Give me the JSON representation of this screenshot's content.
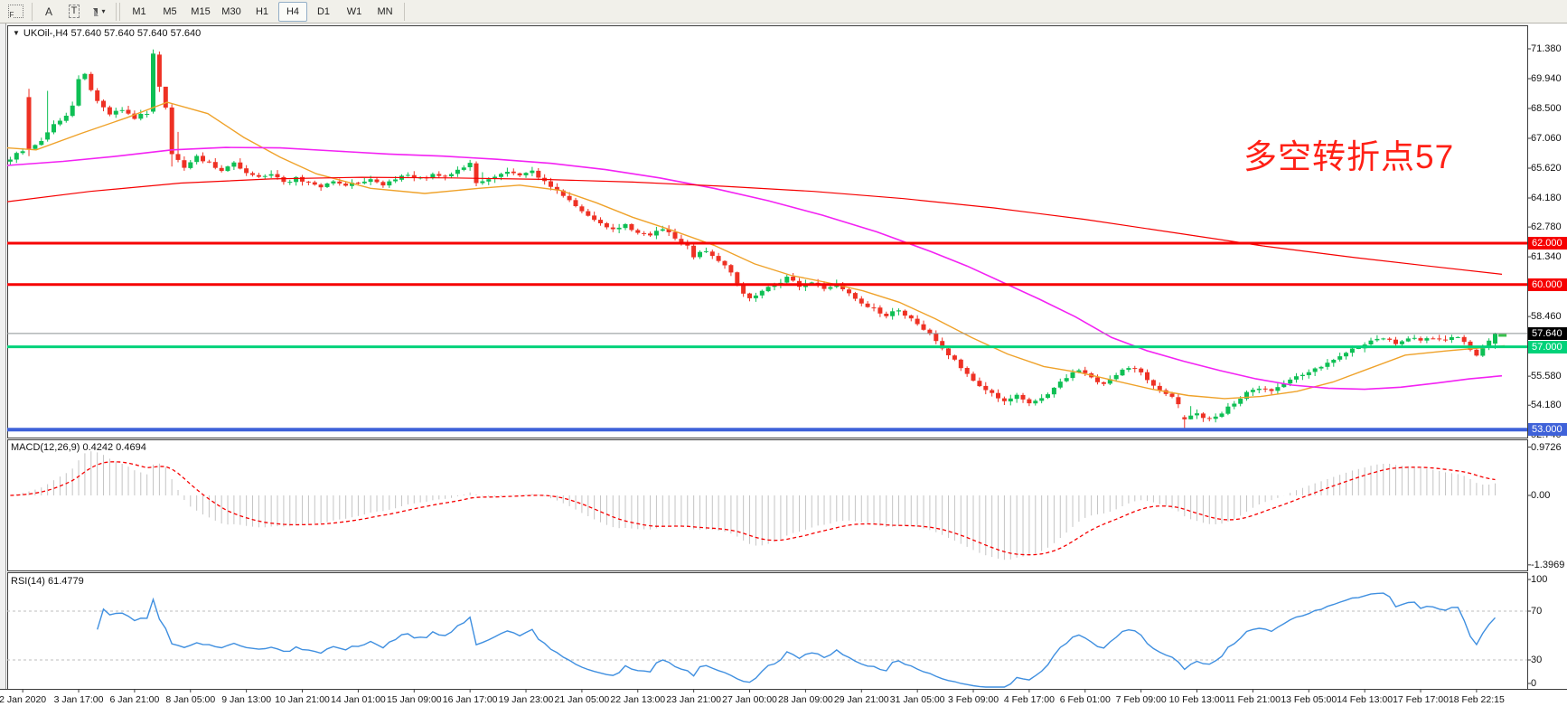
{
  "toolbar": {
    "f_label": "F",
    "a_label": "A",
    "t_label": "T",
    "dropdown_caret": "▾",
    "timeframes": [
      "M1",
      "M5",
      "M15",
      "M30",
      "H1",
      "H4",
      "D1",
      "W1",
      "MN"
    ],
    "active_timeframe": "H4"
  },
  "chart": {
    "caret": "▼",
    "title_text": "UKOil-,H4  57.640 57.640 57.640 57.640",
    "annotation": {
      "text": "多空转折点57",
      "color": "#ff2016"
    }
  },
  "panels": {
    "macd": {
      "label": "MACD(12,26,9) 0.4242 0.4694",
      "axis": [
        "0.9726",
        "0.00",
        "-1.3969"
      ]
    },
    "rsi": {
      "label": "RSI(14) 61.4779",
      "axis": [
        "100",
        "70",
        "30",
        "0"
      ]
    }
  },
  "price_axis": {
    "labels": [
      "71.380",
      "69.940",
      "68.500",
      "67.060",
      "65.620",
      "64.180",
      "62.780",
      "61.340",
      "58.460",
      "55.580",
      "54.180",
      "52.740"
    ],
    "badges": [
      {
        "text": "62.000",
        "price": 62.0,
        "type": "red"
      },
      {
        "text": "60.000",
        "price": 60.0,
        "type": "red"
      },
      {
        "text": "57.640",
        "price": 57.64,
        "type": "black"
      },
      {
        "text": "57.000",
        "price": 57.0,
        "type": "green"
      },
      {
        "text": "53.000",
        "price": 53.0,
        "type": "blue"
      }
    ],
    "badge_colors": {
      "red": "#f60000",
      "black": "#000000",
      "green": "#00d27a",
      "blue": "#3f62d9"
    }
  },
  "time_axis": {
    "labels": [
      "2 Jan 2020",
      "3 Jan 17:00",
      "6 Jan 21:00",
      "8 Jan 05:00",
      "9 Jan 13:00",
      "10 Jan 21:00",
      "14 Jan 01:00",
      "15 Jan 09:00",
      "16 Jan 17:00",
      "19 Jan 23:00",
      "21 Jan 05:00",
      "22 Jan 13:00",
      "23 Jan 21:00",
      "27 Jan 00:00",
      "28 Jan 09:00",
      "29 Jan 21:00",
      "31 Jan 05:00",
      "3 Feb 09:00",
      "4 Feb 17:00",
      "6 Feb 01:00",
      "7 Feb 09:00",
      "10 Feb 13:00",
      "11 Feb 21:00",
      "13 Feb 05:00",
      "14 Feb 13:00",
      "17 Feb 17:00",
      "18 Feb 22:15"
    ]
  },
  "chart_data": {
    "type": "candlestick",
    "symbol": "UKOil-",
    "timeframe": "H4",
    "ohlc_current": {
      "open": 57.64,
      "high": 57.64,
      "low": 57.64,
      "close": 57.64
    },
    "price_range_visible": [
      52.74,
      71.38
    ],
    "levels": [
      {
        "price": 62.0,
        "color": "#f60000",
        "width": 3,
        "name": "resistance-62"
      },
      {
        "price": 60.0,
        "color": "#f60000",
        "width": 3,
        "name": "resistance-60"
      },
      {
        "price": 57.64,
        "color": "#8a9094",
        "width": 1,
        "name": "current-price-line"
      },
      {
        "price": 57.0,
        "color": "#00d27a",
        "width": 3,
        "name": "pivot-57"
      },
      {
        "price": 53.0,
        "color": "#3f62d9",
        "width": 4,
        "name": "support-53"
      }
    ],
    "candles": {
      "count": 240,
      "up_color": "#0ebf54",
      "down_color": "#ee3124",
      "close_anchors": [
        [
          0,
          66.1
        ],
        [
          2,
          66.45
        ],
        [
          4,
          66.7
        ],
        [
          5,
          66.95
        ],
        [
          6,
          67.35
        ],
        [
          7,
          67.7
        ],
        [
          8,
          67.95
        ],
        [
          9,
          68.15
        ],
        [
          10,
          68.6
        ],
        [
          11,
          69.9
        ],
        [
          12,
          70.2
        ],
        [
          13,
          69.4
        ],
        [
          14,
          68.9
        ],
        [
          16,
          68.2
        ],
        [
          18,
          68.5
        ],
        [
          20,
          68.05
        ],
        [
          22,
          68.3
        ],
        [
          25,
          68.6
        ],
        [
          27,
          65.95
        ],
        [
          28,
          65.7
        ],
        [
          30,
          66.2
        ],
        [
          32,
          65.85
        ],
        [
          34,
          65.55
        ],
        [
          36,
          65.9
        ],
        [
          38,
          65.35
        ],
        [
          40,
          65.15
        ],
        [
          42,
          65.4
        ],
        [
          44,
          64.9
        ],
        [
          46,
          65.15
        ],
        [
          48,
          64.9
        ],
        [
          50,
          64.7
        ],
        [
          52,
          65.0
        ],
        [
          54,
          64.8
        ],
        [
          56,
          64.95
        ],
        [
          58,
          65.15
        ],
        [
          60,
          64.85
        ],
        [
          62,
          65.05
        ],
        [
          64,
          65.3
        ],
        [
          66,
          65.1
        ],
        [
          68,
          65.35
        ],
        [
          70,
          65.25
        ],
        [
          72,
          65.55
        ],
        [
          74,
          65.8
        ],
        [
          76,
          65.05
        ],
        [
          78,
          65.2
        ],
        [
          80,
          65.45
        ],
        [
          82,
          65.3
        ],
        [
          84,
          65.45
        ],
        [
          85,
          65.2
        ],
        [
          87,
          64.75
        ],
        [
          89,
          64.3
        ],
        [
          91,
          63.8
        ],
        [
          93,
          63.35
        ],
        [
          95,
          62.9
        ],
        [
          97,
          62.65
        ],
        [
          99,
          62.85
        ],
        [
          101,
          62.55
        ],
        [
          103,
          62.35
        ],
        [
          105,
          62.7
        ],
        [
          107,
          62.2
        ],
        [
          109,
          61.8
        ],
        [
          110,
          61.35
        ],
        [
          112,
          61.65
        ],
        [
          114,
          61.2
        ],
        [
          116,
          60.65
        ],
        [
          117,
          60.1
        ],
        [
          118,
          59.6
        ],
        [
          119,
          59.3
        ],
        [
          121,
          59.7
        ],
        [
          123,
          60.0
        ],
        [
          125,
          60.3
        ],
        [
          127,
          59.95
        ],
        [
          129,
          60.15
        ],
        [
          131,
          59.85
        ],
        [
          133,
          60.0
        ],
        [
          135,
          59.55
        ],
        [
          137,
          59.15
        ],
        [
          139,
          58.8
        ],
        [
          141,
          58.5
        ],
        [
          143,
          58.8
        ],
        [
          145,
          58.35
        ],
        [
          147,
          57.9
        ],
        [
          149,
          57.3
        ],
        [
          151,
          56.65
        ],
        [
          153,
          56.0
        ],
        [
          155,
          55.4
        ],
        [
          157,
          54.9
        ],
        [
          159,
          54.5
        ],
        [
          160,
          54.3
        ],
        [
          162,
          54.65
        ],
        [
          164,
          54.25
        ],
        [
          166,
          54.55
        ],
        [
          168,
          55.0
        ],
        [
          170,
          55.5
        ],
        [
          172,
          55.9
        ],
        [
          174,
          55.5
        ],
        [
          176,
          55.2
        ],
        [
          178,
          55.7
        ],
        [
          180,
          56.05
        ],
        [
          182,
          55.7
        ],
        [
          184,
          55.2
        ],
        [
          186,
          54.75
        ],
        [
          188,
          54.3
        ],
        [
          190,
          53.6
        ],
        [
          191,
          53.75
        ],
        [
          193,
          53.45
        ],
        [
          195,
          53.85
        ],
        [
          197,
          54.3
        ],
        [
          199,
          54.75
        ],
        [
          201,
          55.05
        ],
        [
          203,
          54.85
        ],
        [
          205,
          55.25
        ],
        [
          207,
          55.6
        ],
        [
          209,
          55.8
        ],
        [
          211,
          56.1
        ],
        [
          213,
          56.45
        ],
        [
          215,
          56.75
        ],
        [
          217,
          57.0
        ],
        [
          219,
          57.25
        ],
        [
          221,
          57.35
        ],
        [
          223,
          57.2
        ],
        [
          225,
          57.4
        ],
        [
          227,
          57.3
        ],
        [
          229,
          57.45
        ],
        [
          231,
          57.35
        ],
        [
          233,
          57.5
        ],
        [
          234,
          57.2
        ],
        [
          235,
          56.8
        ],
        [
          236,
          56.6
        ],
        [
          237,
          56.95
        ],
        [
          238,
          57.35
        ],
        [
          239,
          57.64
        ]
      ],
      "specials": [
        {
          "i": 3,
          "o": 69.05,
          "h": 69.45,
          "l": 66.2,
          "c": 66.55
        },
        {
          "i": 6,
          "o": 67.0,
          "h": 69.35,
          "l": 66.9,
          "c": 67.35
        },
        {
          "i": 23,
          "o": 68.35,
          "h": 71.35,
          "l": 68.25,
          "c": 71.15
        },
        {
          "i": 24,
          "o": 71.1,
          "h": 71.25,
          "l": 69.3,
          "c": 69.55
        },
        {
          "i": 26,
          "o": 68.55,
          "h": 68.7,
          "l": 65.7,
          "c": 66.3
        },
        {
          "i": 75,
          "o": 65.85,
          "h": 65.95,
          "l": 64.75,
          "c": 64.9
        },
        {
          "i": 189,
          "o": 53.6,
          "h": 53.7,
          "l": 52.95,
          "c": 53.5
        },
        {
          "i": 239,
          "o": 57.15,
          "h": 57.68,
          "l": 56.9,
          "c": 57.64
        }
      ]
    },
    "moving_averages": [
      {
        "name": "ma-fast-orange",
        "color": "#efa22a",
        "width": 1.4,
        "points": [
          [
            8,
            66.6
          ],
          [
            40,
            66.5
          ],
          [
            90,
            67.3
          ],
          [
            140,
            68.05
          ],
          [
            185,
            68.8
          ],
          [
            230,
            68.25
          ],
          [
            270,
            67.1
          ],
          [
            310,
            66.15
          ],
          [
            350,
            65.35
          ],
          [
            410,
            64.65
          ],
          [
            470,
            64.4
          ],
          [
            530,
            64.65
          ],
          [
            575,
            64.8
          ],
          [
            620,
            64.55
          ],
          [
            660,
            63.95
          ],
          [
            700,
            63.25
          ],
          [
            745,
            62.6
          ],
          [
            790,
            61.9
          ],
          [
            835,
            61.0
          ],
          [
            875,
            60.45
          ],
          [
            915,
            60.1
          ],
          [
            955,
            59.7
          ],
          [
            995,
            59.15
          ],
          [
            1035,
            58.35
          ],
          [
            1075,
            57.45
          ],
          [
            1115,
            56.65
          ],
          [
            1155,
            56.05
          ],
          [
            1195,
            55.75
          ],
          [
            1235,
            55.35
          ],
          [
            1275,
            54.95
          ],
          [
            1315,
            54.65
          ],
          [
            1355,
            54.5
          ],
          [
            1395,
            54.6
          ],
          [
            1435,
            54.85
          ],
          [
            1475,
            55.3
          ],
          [
            1515,
            55.95
          ],
          [
            1555,
            56.6
          ],
          [
            1600,
            56.8
          ],
          [
            1640,
            56.95
          ],
          [
            1665,
            57.05
          ]
        ]
      },
      {
        "name": "ma-mid-magenta",
        "color": "#f322f3",
        "width": 1.6,
        "points": [
          [
            8,
            65.75
          ],
          [
            70,
            65.95
          ],
          [
            130,
            66.2
          ],
          [
            190,
            66.5
          ],
          [
            250,
            66.62
          ],
          [
            310,
            66.6
          ],
          [
            370,
            66.45
          ],
          [
            430,
            66.3
          ],
          [
            490,
            66.2
          ],
          [
            550,
            66.05
          ],
          [
            610,
            65.85
          ],
          [
            670,
            65.55
          ],
          [
            730,
            65.15
          ],
          [
            790,
            64.65
          ],
          [
            850,
            64.05
          ],
          [
            910,
            63.35
          ],
          [
            970,
            62.55
          ],
          [
            1030,
            61.6
          ],
          [
            1070,
            60.9
          ],
          [
            1110,
            60.1
          ],
          [
            1150,
            59.3
          ],
          [
            1190,
            58.45
          ],
          [
            1230,
            57.45
          ],
          [
            1270,
            56.8
          ],
          [
            1310,
            56.3
          ],
          [
            1350,
            55.85
          ],
          [
            1390,
            55.45
          ],
          [
            1430,
            55.15
          ],
          [
            1470,
            55.0
          ],
          [
            1510,
            54.95
          ],
          [
            1550,
            55.05
          ],
          [
            1590,
            55.25
          ],
          [
            1626,
            55.45
          ],
          [
            1662,
            55.6
          ]
        ]
      },
      {
        "name": "ma-slow-red",
        "color": "#f60000",
        "width": 1.2,
        "points": [
          [
            8,
            64.0
          ],
          [
            100,
            64.5
          ],
          [
            200,
            64.9
          ],
          [
            300,
            65.1
          ],
          [
            400,
            65.18
          ],
          [
            500,
            65.15
          ],
          [
            600,
            65.08
          ],
          [
            700,
            64.95
          ],
          [
            800,
            64.75
          ],
          [
            900,
            64.5
          ],
          [
            1000,
            64.15
          ],
          [
            1100,
            63.7
          ],
          [
            1200,
            63.15
          ],
          [
            1300,
            62.5
          ],
          [
            1400,
            61.85
          ],
          [
            1500,
            61.3
          ],
          [
            1580,
            60.9
          ],
          [
            1662,
            60.5
          ]
        ]
      }
    ],
    "macd": {
      "params": "12,26,9",
      "current_main": 0.4242,
      "current_signal": 0.4694,
      "range": [
        -1.3969,
        0.9726
      ],
      "histogram_color": "#c4c4c4",
      "signal_color": "#f60000"
    },
    "rsi": {
      "params": "14",
      "current": 61.4779,
      "levels": [
        70,
        30
      ],
      "range": [
        0,
        100
      ],
      "line_color": "#3f8fe0",
      "level_color": "#bdbdbd"
    },
    "current_bar_marker": {
      "price": 57.55,
      "color": "#39c24d"
    }
  }
}
